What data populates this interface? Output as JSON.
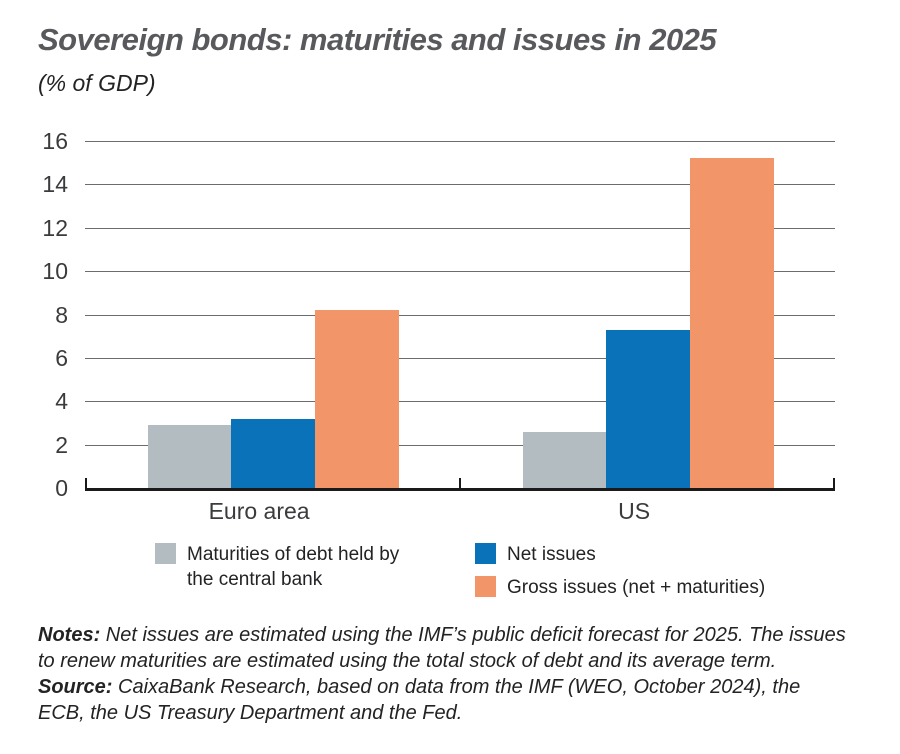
{
  "chart_data": {
    "type": "bar",
    "title": "Sovereign bonds: maturities and issues in 2025",
    "subtitle": "(% of GDP)",
    "categories": [
      "Euro area",
      "US"
    ],
    "series": [
      {
        "name": "Maturities of debt held by the central bank",
        "color": "#b3bcc0",
        "values": [
          2.9,
          2.6
        ]
      },
      {
        "name": "Net issues",
        "color": "#0a72b8",
        "values": [
          3.2,
          7.3
        ]
      },
      {
        "name": "Gross issues (net + maturities)",
        "color": "#f2966a",
        "values": [
          8.2,
          15.2
        ]
      }
    ],
    "ylim": [
      0,
      16
    ],
    "ytick_step": 2,
    "grid": true,
    "legend_position": "bottom",
    "colors": {
      "gridline": "#6a6c6e",
      "axis": "#1a1a1a",
      "tick_label": "#3a3b3d",
      "title": "#58595c",
      "text": "#232325"
    }
  },
  "notes": {
    "label": "Notes:",
    "text": "Net issues are estimated using the IMF’s public deficit forecast for 2025. The issues to renew maturities are estimated using the total stock of debt and its average term."
  },
  "source": {
    "label": "Source:",
    "text": "CaixaBank Research, based on data from the IMF (WEO, October 2024), the ECB, the US Treasury Department and the Fed."
  }
}
